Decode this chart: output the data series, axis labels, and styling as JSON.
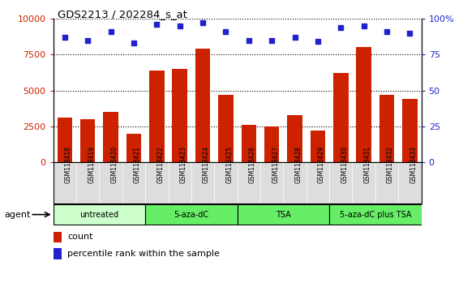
{
  "title": "GDS2213 / 202284_s_at",
  "samples": [
    "GSM118418",
    "GSM118419",
    "GSM118420",
    "GSM118421",
    "GSM118422",
    "GSM118423",
    "GSM118424",
    "GSM118425",
    "GSM118426",
    "GSM118427",
    "GSM118428",
    "GSM118429",
    "GSM118430",
    "GSM118431",
    "GSM118432",
    "GSM118433"
  ],
  "counts": [
    3100,
    3000,
    3500,
    2000,
    6400,
    6500,
    7900,
    4700,
    2600,
    2500,
    3300,
    2200,
    6200,
    8000,
    4700,
    4400
  ],
  "percentiles": [
    87,
    85,
    91,
    83,
    96,
    95,
    97,
    91,
    85,
    85,
    87,
    84,
    94,
    95,
    91,
    90
  ],
  "bar_color": "#cc2200",
  "dot_color": "#2222cc",
  "groups": [
    {
      "label": "untreated",
      "start": 0,
      "end": 4,
      "color": "#ccffcc"
    },
    {
      "label": "5-aza-dC",
      "start": 4,
      "end": 8,
      "color": "#66ee66"
    },
    {
      "label": "TSA",
      "start": 8,
      "end": 12,
      "color": "#66ee66"
    },
    {
      "label": "5-aza-dC plus TSA",
      "start": 12,
      "end": 16,
      "color": "#66ee66"
    }
  ],
  "ylim_left": [
    0,
    10000
  ],
  "ylim_right": [
    0,
    100
  ],
  "yticks_left": [
    0,
    2500,
    5000,
    7500,
    10000
  ],
  "yticks_right": [
    0,
    25,
    50,
    75,
    100
  ],
  "legend_count_label": "count",
  "legend_pct_label": "percentile rank within the sample",
  "agent_label": "agent",
  "bg_color": "#ffffff",
  "plot_bg": "#ffffff",
  "grid_color": "#000000",
  "tick_label_color_left": "#cc2200",
  "tick_label_color_right": "#2222cc",
  "xtick_bg": "#dddddd"
}
